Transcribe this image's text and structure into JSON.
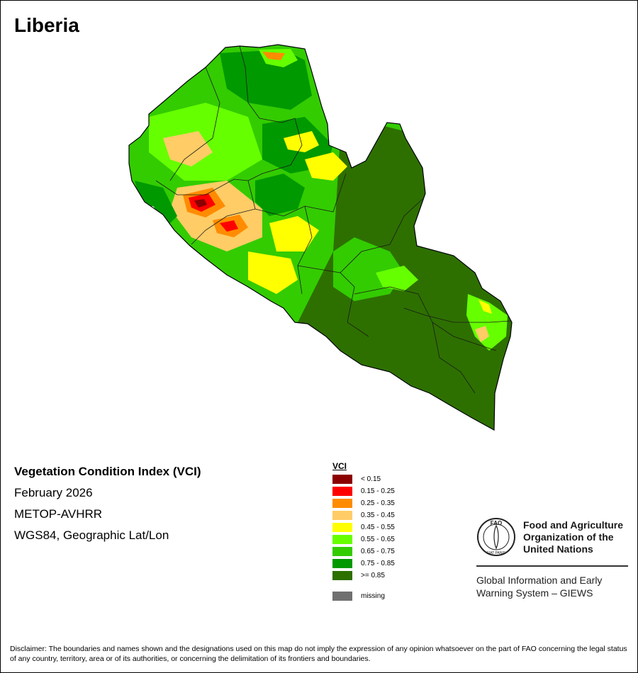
{
  "map": {
    "title": "Liberia",
    "index_title": "Vegetation Condition Index (VCI)",
    "date": "February 2026",
    "sensor": "METOP-AVHRR",
    "projection": "WGS84, Geographic Lat/Lon"
  },
  "legend": {
    "title": "VCI",
    "items": [
      {
        "label": "< 0.15",
        "color": "#8b0000"
      },
      {
        "label": "0.15 - 0.25",
        "color": "#ff0000"
      },
      {
        "label": "0.25 - 0.35",
        "color": "#ff8c00"
      },
      {
        "label": "0.35 - 0.45",
        "color": "#ffcc66"
      },
      {
        "label": "0.45 - 0.55",
        "color": "#ffff00"
      },
      {
        "label": "0.55 - 0.65",
        "color": "#66ff00"
      },
      {
        "label": "0.65 - 0.75",
        "color": "#33cc00"
      },
      {
        "label": "0.75 - 0.85",
        "color": "#009900"
      },
      {
        "label": ">= 0.85",
        "color": "#2d7000"
      }
    ],
    "missing": {
      "label": "missing",
      "color": "#707070"
    }
  },
  "organization": {
    "name_line1": "Food and Agriculture",
    "name_line2": "Organization of the",
    "name_line3": "United Nations",
    "emblem_letters": "FAO",
    "emblem_motto": "FIAT PANIS",
    "giews_line1": "Global Information and Early",
    "giews_line2": "Warning System – GIEWS"
  },
  "disclaimer": "Disclaimer: The boundaries and names shown and the designations used on this map do not imply the expression of any opinion whatsoever on the part of FAO concerning the legal status of any country, territory, area or of its authorities, or concerning the delimitation of its frontiers and boundaries."
}
